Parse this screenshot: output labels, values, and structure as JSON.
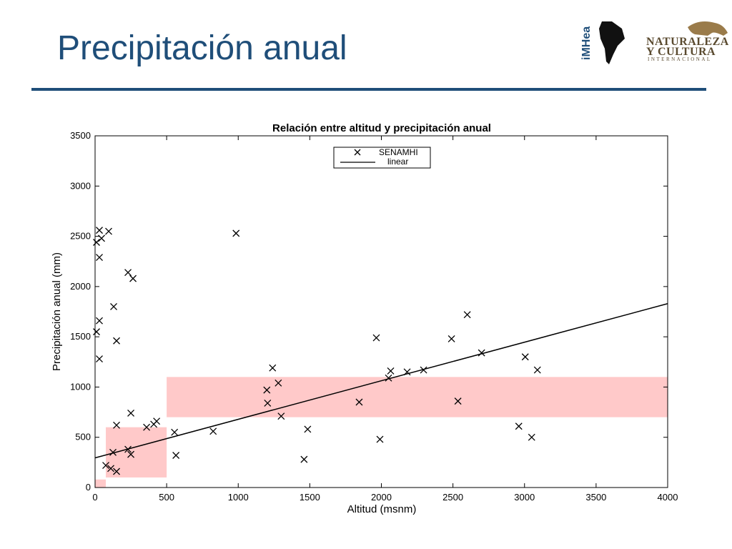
{
  "slide": {
    "title": "Precipitación anual"
  },
  "logos": {
    "imhea_label": "iMHea",
    "nci_line1": "NATURALEZA",
    "nci_line2": "Y CULTURA",
    "nci_line3": "INTERNACIONAL"
  },
  "chart_data": {
    "type": "scatter",
    "title": "Relación entre altitud y precipitación anual",
    "xlabel": "Altitud (msnm)",
    "ylabel": "Precipitación anual (mm)",
    "xlim": [
      0,
      4000
    ],
    "ylim": [
      0,
      3500
    ],
    "xticks": [
      0,
      500,
      1000,
      1500,
      2000,
      2500,
      3000,
      3500,
      4000
    ],
    "yticks": [
      0,
      500,
      1000,
      1500,
      2000,
      2500,
      3000,
      3500
    ],
    "grid": false,
    "legend_position": "top-center",
    "colors": {
      "points": "#000000",
      "line": "#000000",
      "highlight": "#ffc9c9"
    },
    "series": [
      {
        "name": "SENAMHI",
        "marker": "x",
        "points": [
          [
            10,
            2440
          ],
          [
            30,
            2290
          ],
          [
            30,
            2560
          ],
          [
            45,
            2480
          ],
          [
            95,
            2550
          ],
          [
            10,
            1550
          ],
          [
            30,
            1660
          ],
          [
            30,
            1280
          ],
          [
            130,
            1800
          ],
          [
            150,
            1460
          ],
          [
            230,
            2140
          ],
          [
            265,
            2080
          ],
          [
            75,
            220
          ],
          [
            110,
            190
          ],
          [
            150,
            160
          ],
          [
            125,
            350
          ],
          [
            150,
            620
          ],
          [
            230,
            380
          ],
          [
            250,
            330
          ],
          [
            250,
            740
          ],
          [
            360,
            600
          ],
          [
            410,
            630
          ],
          [
            430,
            660
          ],
          [
            555,
            550
          ],
          [
            565,
            320
          ],
          [
            825,
            560
          ],
          [
            985,
            2530
          ],
          [
            1200,
            970
          ],
          [
            1205,
            840
          ],
          [
            1240,
            1190
          ],
          [
            1280,
            1040
          ],
          [
            1300,
            710
          ],
          [
            1460,
            280
          ],
          [
            1485,
            580
          ],
          [
            1845,
            850
          ],
          [
            1965,
            1490
          ],
          [
            1990,
            480
          ],
          [
            2050,
            1090
          ],
          [
            2065,
            1160
          ],
          [
            2180,
            1150
          ],
          [
            2295,
            1170
          ],
          [
            2490,
            1480
          ],
          [
            2535,
            860
          ],
          [
            2600,
            1720
          ],
          [
            2700,
            1340
          ],
          [
            2960,
            610
          ],
          [
            3005,
            1300
          ],
          [
            3050,
            500
          ],
          [
            3090,
            1170
          ]
        ]
      },
      {
        "name": "linear",
        "type": "line",
        "x": [
          0,
          4000
        ],
        "y": [
          295,
          1830
        ]
      }
    ],
    "highlight_regions": [
      {
        "x": [
          0,
          75
        ],
        "y": [
          0,
          80
        ]
      },
      {
        "x": [
          75,
          500
        ],
        "y": [
          100,
          600
        ]
      },
      {
        "x": [
          500,
          4000
        ],
        "y": [
          700,
          1100
        ]
      }
    ]
  }
}
